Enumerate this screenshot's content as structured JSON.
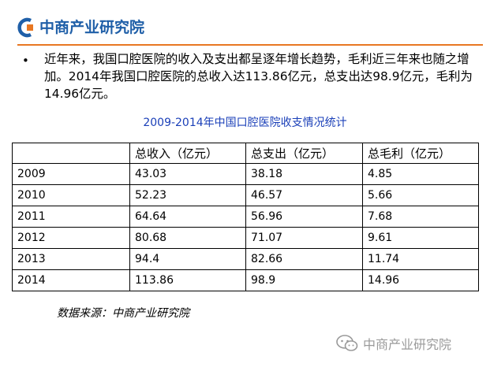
{
  "header": {
    "logo_text": "中商产业研究院",
    "logo_icon": "c-logo-icon",
    "accent_color": "#e87722",
    "brand_color": "#1f5fa8"
  },
  "content": {
    "bullet": "•",
    "paragraph": "近年来，我国口腔医院的收入及支出都呈逐年增长趋势，毛利近三年来也随之增加。2014年我国口腔医院的总收入达113.86亿元，总支出达98.9亿元，毛利为14.96亿元。"
  },
  "table": {
    "title": "2009-2014年中国口腔医院收支情况统计",
    "headers": [
      "",
      "总收入（亿元）",
      "总支出（亿元）",
      "总毛利（亿元）"
    ],
    "rows": [
      [
        "2009",
        "43.03",
        "38.18",
        "4.85"
      ],
      [
        "2010",
        "52.23",
        "46.57",
        "5.66"
      ],
      [
        "2011",
        "64.64",
        "56.96",
        "7.68"
      ],
      [
        "2012",
        "80.68",
        "71.07",
        "9.61"
      ],
      [
        "2013",
        "94.4",
        "82.66",
        "11.74"
      ],
      [
        "2014",
        "113.86",
        "98.9",
        "14.96"
      ]
    ]
  },
  "source": "数据来源：中商产业研究院",
  "watermark": {
    "text": "中商产业研究院",
    "icon": "wechat-icon"
  }
}
